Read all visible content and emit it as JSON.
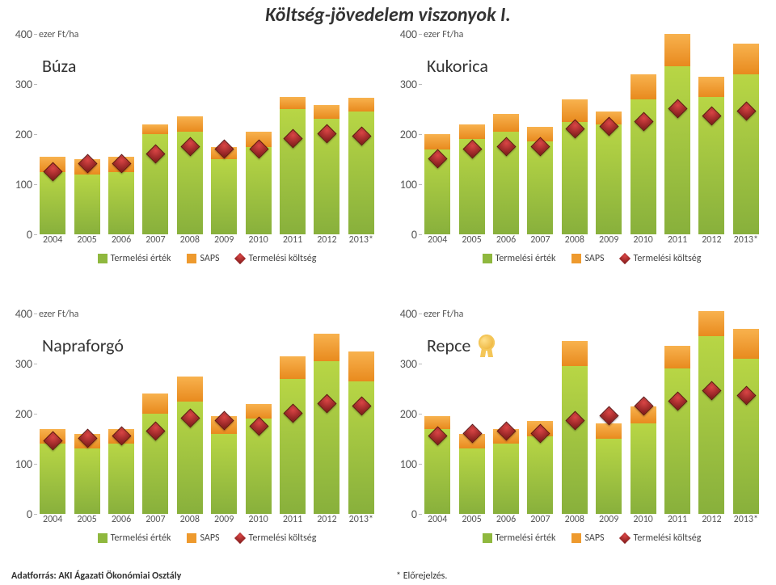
{
  "title": "Költség-jövedelem viszonyok I.",
  "footer_left": "Adatforrás: AKI Ágazati Ökonómiai Osztály",
  "footer_right": "* Előrejelzés.",
  "axis_unit": "ezer Ft/ha",
  "ylim": [
    0,
    400
  ],
  "ytick_step": 100,
  "yticks": [
    "0",
    "100",
    "200",
    "300",
    "400"
  ],
  "categories": [
    "2004",
    "2005",
    "2006",
    "2007",
    "2008",
    "2009",
    "2010",
    "2011",
    "2012",
    "2013*"
  ],
  "legend": {
    "ertek": "Termelési érték",
    "saps": "SAPS",
    "koltseg": "Termelési költség"
  },
  "colors": {
    "ertek_top": "#b8d645",
    "ertek_bottom": "#88b03c",
    "saps_top": "#f8b24e",
    "saps_bottom": "#e88a1e",
    "marker_light": "#d94545",
    "marker_dark": "#7a1818",
    "background": "#ffffff",
    "text": "#555555"
  },
  "charts": [
    {
      "key": "buza",
      "title": "Búza",
      "rosette": false,
      "ertek": [
        125,
        120,
        125,
        200,
        205,
        150,
        175,
        250,
        230,
        245
      ],
      "saps": [
        30,
        30,
        30,
        20,
        30,
        25,
        30,
        25,
        28,
        28
      ],
      "koltseg": [
        125,
        140,
        140,
        160,
        175,
        170,
        170,
        190,
        200,
        195
      ]
    },
    {
      "key": "kukorica",
      "title": "Kukorica",
      "rosette": false,
      "ertek": [
        170,
        190,
        205,
        185,
        225,
        220,
        270,
        335,
        275,
        320
      ],
      "saps": [
        30,
        30,
        35,
        30,
        45,
        25,
        50,
        65,
        40,
        60
      ],
      "koltseg": [
        150,
        170,
        175,
        175,
        210,
        215,
        225,
        250,
        235,
        245
      ]
    },
    {
      "key": "napraforgo",
      "title": "Napraforgó",
      "rosette": false,
      "ertek": [
        140,
        130,
        140,
        200,
        225,
        160,
        190,
        270,
        305,
        265
      ],
      "saps": [
        30,
        30,
        30,
        40,
        50,
        35,
        30,
        45,
        55,
        60
      ],
      "koltseg": [
        145,
        150,
        155,
        165,
        190,
        185,
        175,
        200,
        220,
        215
      ]
    },
    {
      "key": "repce",
      "title": "Repce",
      "rosette": true,
      "ertek": [
        170,
        130,
        140,
        155,
        295,
        150,
        180,
        290,
        355,
        310
      ],
      "saps": [
        25,
        30,
        30,
        30,
        50,
        30,
        35,
        45,
        50,
        60
      ],
      "koltseg": [
        155,
        160,
        165,
        160,
        185,
        195,
        215,
        225,
        245,
        235
      ]
    }
  ]
}
